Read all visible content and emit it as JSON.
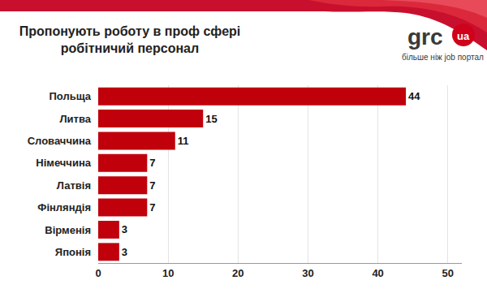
{
  "chart_data": {
    "type": "bar",
    "title": "Пропонують роботу в проф сфері\nробітничий персонал",
    "orientation": "horizontal",
    "categories": [
      "Польща",
      "Литва",
      "Словаччина",
      "Німеччина",
      "Латвія",
      "Фінляндія",
      "Вірменія",
      "Японія"
    ],
    "values": [
      44,
      15,
      11,
      7,
      7,
      7,
      3,
      3
    ],
    "color": "#c0000b",
    "xlim": [
      0,
      52
    ],
    "xticks": [
      0,
      10,
      20,
      30,
      40,
      50
    ],
    "grid": true,
    "data_labels": true,
    "annotations": [
      {
        "text": "grc"
      },
      {
        "text": "ua"
      },
      {
        "text": "більше ніж job портал"
      }
    ]
  }
}
